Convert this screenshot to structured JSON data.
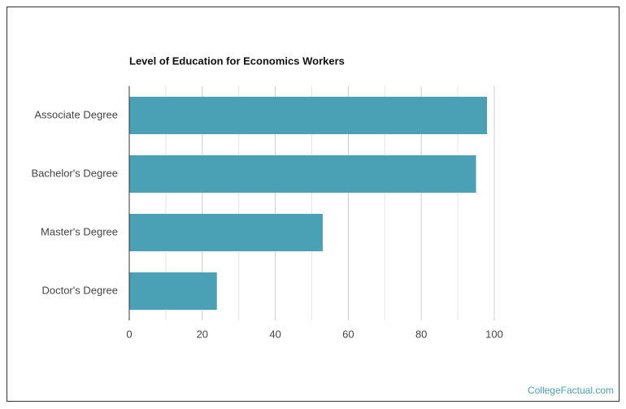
{
  "chart_data": {
    "type": "barh",
    "title": "Level of Education for Economics Workers",
    "categories": [
      "Associate Degree",
      "Bachelor's Degree",
      "Master's Degree",
      "Doctor's Degree"
    ],
    "values": [
      98,
      95,
      53,
      24
    ],
    "color": "#4aa0b5",
    "xlim": [
      0,
      100
    ],
    "xticks": [
      0,
      20,
      40,
      60,
      80,
      100
    ],
    "xminorticks": [
      10,
      30,
      50,
      70,
      90
    ],
    "grid": true,
    "source": "CollegeFactual.com"
  }
}
